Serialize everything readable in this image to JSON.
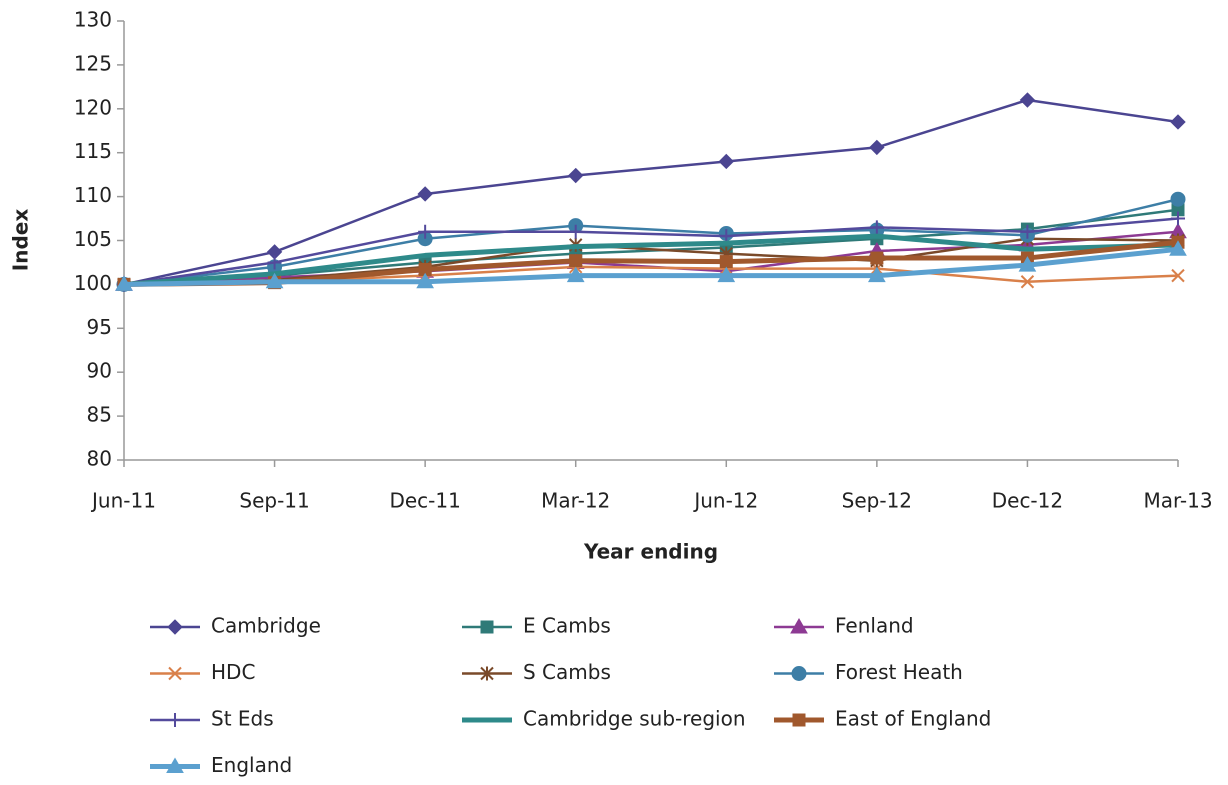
{
  "chart_data": {
    "type": "line",
    "x_label": "Year ending",
    "y_label": "Index",
    "categories": [
      "Jun-11",
      "Sep-11",
      "Dec-11",
      "Mar-12",
      "Jun-12",
      "Sep-12",
      "Dec-12",
      "Mar-13"
    ],
    "ylim": [
      80,
      130
    ],
    "yticks": [
      80,
      85,
      90,
      95,
      100,
      105,
      110,
      115,
      120,
      125,
      130
    ],
    "grid": false,
    "legend": "bottom",
    "series": [
      {
        "name": "Cambridge",
        "color": "#4b4591",
        "marker": "diamond",
        "line_width": 2.5,
        "values": [
          100,
          103.7,
          110.3,
          112.4,
          114,
          115.6,
          121,
          118.5
        ]
      },
      {
        "name": "E Cambs",
        "color": "#2f7a78",
        "marker": "square",
        "line_width": 2.5,
        "values": [
          100,
          101,
          102.5,
          103.5,
          104.2,
          105.2,
          106.3,
          108.5
        ]
      },
      {
        "name": "Fenland",
        "color": "#8d3a93",
        "marker": "triangle",
        "line_width": 2.5,
        "values": [
          100,
          100.8,
          101.5,
          102.5,
          101.5,
          103.8,
          104.5,
          106
        ]
      },
      {
        "name": "HDC",
        "color": "#d9804a",
        "marker": "x",
        "line_width": 2.5,
        "values": [
          100,
          100.3,
          101,
          102,
          101.8,
          101.8,
          100.3,
          101
        ]
      },
      {
        "name": "S Cambs",
        "color": "#7a4a2a",
        "marker": "asterisk",
        "line_width": 2.5,
        "values": [
          100,
          100.5,
          102,
          104.5,
          103.5,
          102.7,
          105.2,
          105
        ]
      },
      {
        "name": "Forest Heath",
        "color": "#3d7ea6",
        "marker": "circle",
        "line_width": 2.5,
        "values": [
          100,
          102,
          105.2,
          106.7,
          105.8,
          106.2,
          105.6,
          109.7
        ]
      },
      {
        "name": "St Eds",
        "color": "#534a9c",
        "marker": "plus",
        "line_width": 2.5,
        "values": [
          100,
          102.5,
          106,
          106,
          105.5,
          106.5,
          106,
          107.5
        ]
      },
      {
        "name": "Cambridge sub-region",
        "color": "#2e8a8a",
        "marker": "none",
        "line_width": 5,
        "values": [
          100,
          101.2,
          103.3,
          104.3,
          104.7,
          105.5,
          104,
          104.5
        ]
      },
      {
        "name": "East of England",
        "color": "#a0582d",
        "marker": "square",
        "line_width": 5,
        "values": [
          100,
          100.2,
          101.7,
          102.7,
          102.6,
          103,
          103,
          104.8
        ]
      },
      {
        "name": "England",
        "color": "#5ba0cf",
        "marker": "triangle",
        "line_width": 5,
        "values": [
          100,
          100.3,
          100.3,
          101,
          101,
          101,
          102.2,
          104
        ]
      }
    ]
  }
}
